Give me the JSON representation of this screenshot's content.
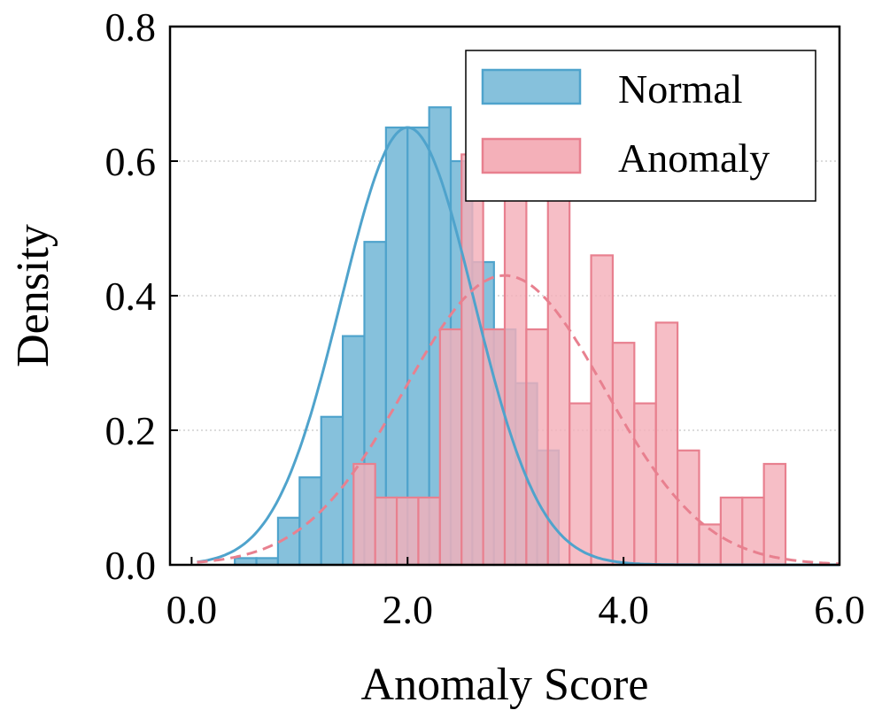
{
  "chart_data": {
    "type": "histogram",
    "xlabel": "Anomaly Score",
    "ylabel": "Density",
    "xlim": [
      -0.2,
      6.0
    ],
    "ylim": [
      0.0,
      0.8
    ],
    "xticks": [
      0.0,
      2.0,
      4.0,
      6.0
    ],
    "xtick_labels": [
      "0.0",
      "2.0",
      "4.0",
      "6.0"
    ],
    "yticks": [
      0.0,
      0.2,
      0.4,
      0.6,
      0.8
    ],
    "ytick_labels": [
      "0.0",
      "0.2",
      "0.4",
      "0.6",
      "0.8"
    ],
    "grid": "horizontal dotted",
    "legend": {
      "position": "top-right",
      "entries": [
        "Normal",
        "Anomaly"
      ]
    },
    "series": [
      {
        "name": "Normal",
        "color": "#86c1dc",
        "edge_color": "#4fa3cc",
        "line_color": "#4fa3cc",
        "line_style": "solid",
        "bin_edges": [
          0.4,
          0.6,
          0.8,
          1.0,
          1.2,
          1.4,
          1.6,
          1.8,
          2.0,
          2.2,
          2.4,
          2.6,
          2.8,
          3.0,
          3.2,
          3.4
        ],
        "densities": [
          0.01,
          0.01,
          0.07,
          0.13,
          0.22,
          0.34,
          0.48,
          0.65,
          0.65,
          0.68,
          0.6,
          0.45,
          0.35,
          0.27,
          0.17,
          0.09
        ],
        "kde_peak": [
          2.0,
          0.65
        ]
      },
      {
        "name": "Anomaly",
        "color": "#f4b0b9",
        "edge_color": "#e8808f",
        "line_color": "#e8808f",
        "line_style": "dashed",
        "bin_edges": [
          1.5,
          1.7,
          1.9,
          2.1,
          2.3,
          2.5,
          2.7,
          2.9,
          3.1,
          3.3,
          3.5,
          3.7,
          3.9,
          4.1,
          4.3,
          4.5,
          4.7,
          4.9,
          5.1,
          5.3,
          5.5
        ],
        "densities": [
          0.15,
          0.1,
          0.1,
          0.1,
          0.35,
          0.61,
          0.35,
          0.61,
          0.35,
          0.71,
          0.24,
          0.46,
          0.33,
          0.24,
          0.36,
          0.17,
          0.06,
          0.1,
          0.1,
          0.15,
          0.1
        ],
        "kde_peak": [
          2.9,
          0.43
        ]
      }
    ]
  }
}
